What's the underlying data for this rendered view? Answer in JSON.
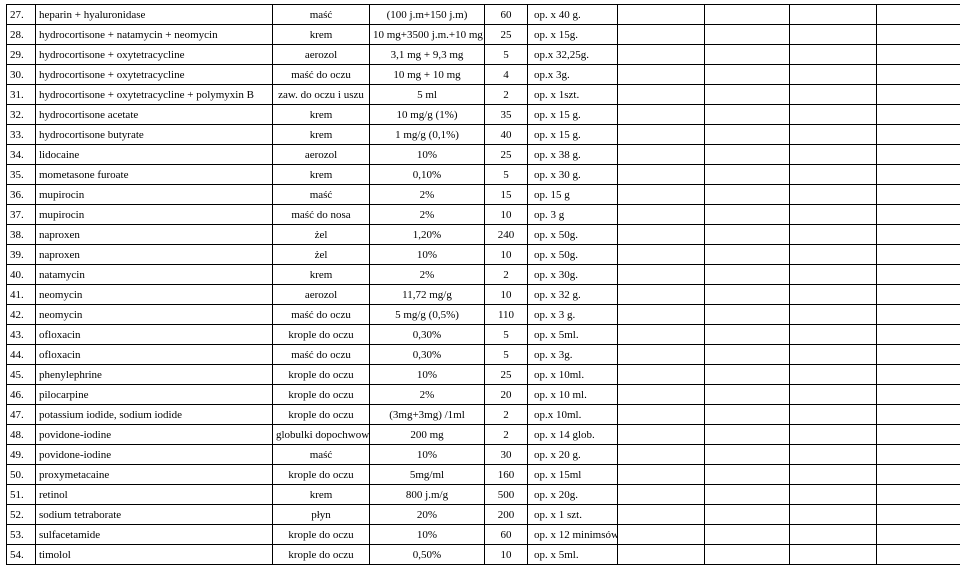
{
  "rows": [
    {
      "n": "27.",
      "name": "heparin + hyaluronidase",
      "form": "maść",
      "dose": "(100 j.m+150 j.m)",
      "qty": "60",
      "pack": "op. x 40 g."
    },
    {
      "n": "28.",
      "name": "hydrocortisone + natamycin + neomycin",
      "form": "krem",
      "dose": "10 mg+3500 j.m.+10 mg",
      "qty": "25",
      "pack": "op. x 15g."
    },
    {
      "n": "29.",
      "name": "hydrocortisone + oxytetracycline",
      "form": "aerozol",
      "dose": "3,1 mg + 9,3 mg",
      "qty": "5",
      "pack": "op.x 32,25g."
    },
    {
      "n": "30.",
      "name": "hydrocortisone + oxytetracycline",
      "form": "maść do oczu",
      "dose": "10 mg + 10 mg",
      "qty": "4",
      "pack": "op.x 3g."
    },
    {
      "n": "31.",
      "name": "hydrocortisone + oxytetracycline + polymyxin B",
      "form": "zaw. do oczu i uszu",
      "dose": "5 ml",
      "qty": "2",
      "pack": "op. x 1szt."
    },
    {
      "n": "32.",
      "name": "hydrocortisone acetate",
      "form": "krem",
      "dose": "10 mg/g (1%)",
      "qty": "35",
      "pack": "op. x 15 g."
    },
    {
      "n": "33.",
      "name": "hydrocortisone butyrate",
      "form": "krem",
      "dose": "1 mg/g (0,1%)",
      "qty": "40",
      "pack": "op. x 15 g."
    },
    {
      "n": "34.",
      "name": "lidocaine",
      "form": "aerozol",
      "dose": "10%",
      "qty": "25",
      "pack": "op. x 38 g."
    },
    {
      "n": "35.",
      "name": "mometasone furoate",
      "form": "krem",
      "dose": "0,10%",
      "qty": "5",
      "pack": "op. x 30 g."
    },
    {
      "n": "36.",
      "name": "mupirocin",
      "form": "maść",
      "dose": "2%",
      "qty": "15",
      "pack": "op. 15 g"
    },
    {
      "n": "37.",
      "name": "mupirocin",
      "form": "maść do nosa",
      "dose": "2%",
      "qty": "10",
      "pack": "op. 3 g"
    },
    {
      "n": "38.",
      "name": "naproxen",
      "form": "żel",
      "dose": "1,20%",
      "qty": "240",
      "pack": "op. x 50g."
    },
    {
      "n": "39.",
      "name": "naproxen",
      "form": "żel",
      "dose": "10%",
      "qty": "10",
      "pack": "op. x 50g."
    },
    {
      "n": "40.",
      "name": "natamycin",
      "form": "krem",
      "dose": "2%",
      "qty": "2",
      "pack": "op. x 30g."
    },
    {
      "n": "41.",
      "name": "neomycin",
      "form": "aerozol",
      "dose": "11,72 mg/g",
      "qty": "10",
      "pack": "op. x 32 g."
    },
    {
      "n": "42.",
      "name": "neomycin",
      "form": "maść do oczu",
      "dose": "5 mg/g (0,5%)",
      "qty": "110",
      "pack": "op. x 3 g."
    },
    {
      "n": "43.",
      "name": "ofloxacin",
      "form": "krople do oczu",
      "dose": "0,30%",
      "qty": "5",
      "pack": "op. x 5ml."
    },
    {
      "n": "44.",
      "name": "ofloxacin",
      "form": "maść do oczu",
      "dose": "0,30%",
      "qty": "5",
      "pack": "op. x 3g."
    },
    {
      "n": "45.",
      "name": "phenylephrine",
      "form": "krople do oczu",
      "dose": "10%",
      "qty": "25",
      "pack": "op. x 10ml."
    },
    {
      "n": "46.",
      "name": "pilocarpine",
      "form": "krople do oczu",
      "dose": "2%",
      "qty": "20",
      "pack": "op. x 10 ml."
    },
    {
      "n": "47.",
      "name": "potassium iodide, sodium iodide",
      "form": "krople do oczu",
      "dose": "(3mg+3mg)  /1ml",
      "qty": "2",
      "pack": "op.x 10ml."
    },
    {
      "n": "48.",
      "name": "povidone-iodine",
      "form": "globulki dopochwowe",
      "dose": "200 mg",
      "qty": "2",
      "pack": "op. x 14 glob."
    },
    {
      "n": "49.",
      "name": "povidone-iodine",
      "form": "maść",
      "dose": "10%",
      "qty": "30",
      "pack": "op. x 20 g."
    },
    {
      "n": "50.",
      "name": "proxymetacaine",
      "form": "krople do oczu",
      "dose": "5mg/ml",
      "qty": "160",
      "pack": "op. x 15ml"
    },
    {
      "n": "51.",
      "name": "retinol",
      "form": "krem",
      "dose": "800 j.m/g",
      "qty": "500",
      "pack": "op. x 20g."
    },
    {
      "n": "52.",
      "name": "sodium tetraborate",
      "form": "płyn",
      "dose": "20%",
      "qty": "200",
      "pack": "op. x 1 szt."
    },
    {
      "n": "53.",
      "name": "sulfacetamide",
      "form": "krople do oczu",
      "dose": "10%",
      "qty": "60",
      "pack": "op. x 12 minimsów."
    },
    {
      "n": "54.",
      "name": "timolol",
      "form": "krople do oczu",
      "dose": "0,50%",
      "qty": "10",
      "pack": "op. x 5ml."
    }
  ]
}
